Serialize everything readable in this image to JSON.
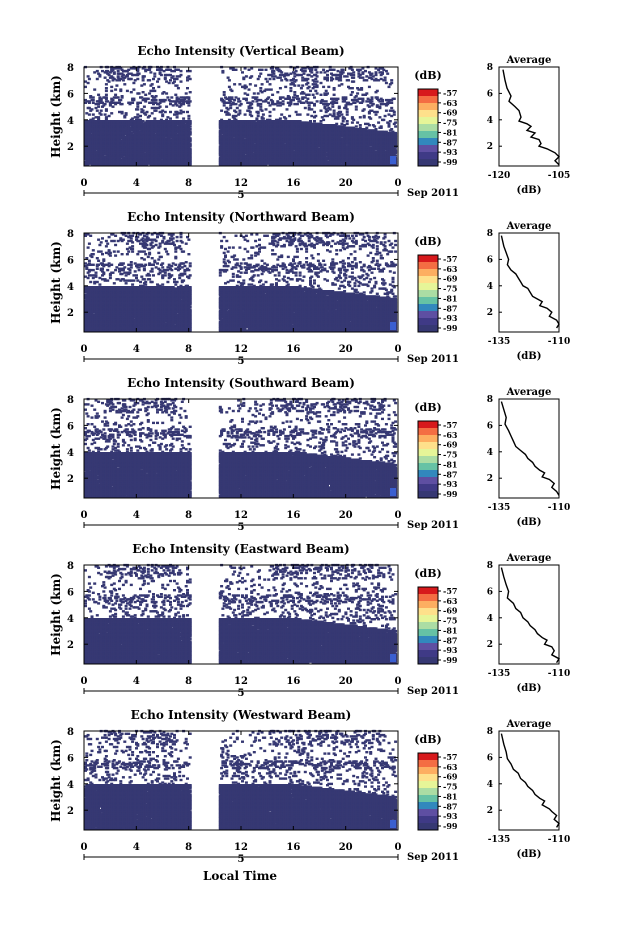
{
  "figure": {
    "xlabel": "Local Time",
    "date_label": "Sep 2011",
    "day_label": "5",
    "ylabel": "Height (km)",
    "colorbar_unit": "(dB)",
    "average_title": "Average",
    "average_xlabel": "(dB)"
  },
  "chart_data": [
    {
      "type": "heatmap",
      "title": "Echo Intensity (Vertical Beam)",
      "x_ticks": [
        "0",
        "4",
        "8",
        "12",
        "16",
        "20",
        "0"
      ],
      "xlim": [
        0,
        24
      ],
      "y_ticks": [
        "2",
        "4",
        "6",
        "8"
      ],
      "ylim": [
        0.5,
        8
      ],
      "colorbar_ticks": [
        "-57",
        "-63",
        "-69",
        "-75",
        "-81",
        "-87",
        "-93",
        "-99"
      ],
      "gap_hours": [
        8,
        10.2
      ],
      "dense_top_km": 3.85,
      "average": {
        "xlim": [
          -120,
          -105
        ],
        "x_ticks": [
          "-120",
          "-105"
        ],
        "y_ticks": [
          "2",
          "4",
          "6",
          "8"
        ],
        "points": [
          [
            -119,
            7.8
          ],
          [
            -118.5,
            7.0
          ],
          [
            -118,
            6.4
          ],
          [
            -117,
            5.8
          ],
          [
            -117.5,
            5.4
          ],
          [
            -116,
            5.0
          ],
          [
            -115,
            4.7
          ],
          [
            -114.5,
            4.2
          ],
          [
            -115,
            3.9
          ],
          [
            -113,
            3.7
          ],
          [
            -112,
            3.5
          ],
          [
            -113,
            3.2
          ],
          [
            -111,
            3.0
          ],
          [
            -112,
            2.7
          ],
          [
            -110,
            2.5
          ],
          [
            -109.5,
            2.2
          ],
          [
            -110,
            2.0
          ],
          [
            -108,
            1.8
          ],
          [
            -106,
            1.5
          ],
          [
            -105,
            1.2
          ],
          [
            -106,
            0.9
          ],
          [
            -105,
            0.6
          ]
        ]
      }
    },
    {
      "type": "heatmap",
      "title": "Echo Intensity (Northward Beam)",
      "x_ticks": [
        "0",
        "4",
        "8",
        "12",
        "16",
        "20",
        "0"
      ],
      "xlim": [
        0,
        24
      ],
      "y_ticks": [
        "2",
        "4",
        "6",
        "8"
      ],
      "ylim": [
        0.5,
        8
      ],
      "colorbar_ticks": [
        "-57",
        "-63",
        "-69",
        "-75",
        "-81",
        "-87",
        "-93",
        "-99"
      ],
      "gap_hours": [
        8,
        10.2
      ],
      "dense_top_km": 3.85,
      "average": {
        "xlim": [
          -135,
          -110
        ],
        "x_ticks": [
          "-135",
          "-110"
        ],
        "y_ticks": [
          "2",
          "4",
          "6",
          "8"
        ],
        "points": [
          [
            -134,
            7.8
          ],
          [
            -133,
            7.0
          ],
          [
            -132,
            6.5
          ],
          [
            -131,
            6.0
          ],
          [
            -131.5,
            5.6
          ],
          [
            -130,
            5.2
          ],
          [
            -128,
            4.9
          ],
          [
            -127,
            4.6
          ],
          [
            -126,
            4.3
          ],
          [
            -125,
            4.0
          ],
          [
            -123,
            3.8
          ],
          [
            -122,
            3.5
          ],
          [
            -121,
            3.2
          ],
          [
            -119,
            3.0
          ],
          [
            -117,
            2.8
          ],
          [
            -118,
            2.5
          ],
          [
            -115,
            2.3
          ],
          [
            -113,
            2.0
          ],
          [
            -114,
            1.7
          ],
          [
            -111,
            1.4
          ],
          [
            -110,
            1.1
          ],
          [
            -111,
            0.8
          ]
        ]
      }
    },
    {
      "type": "heatmap",
      "title": "Echo Intensity (Southward Beam)",
      "x_ticks": [
        "0",
        "4",
        "8",
        "12",
        "16",
        "20",
        "0"
      ],
      "xlim": [
        0,
        24
      ],
      "y_ticks": [
        "2",
        "4",
        "6",
        "8"
      ],
      "ylim": [
        0.5,
        8
      ],
      "colorbar_ticks": [
        "-57",
        "-63",
        "-69",
        "-75",
        "-81",
        "-87",
        "-93",
        "-99"
      ],
      "gap_hours": [
        8,
        10.2
      ],
      "dense_top_km": 3.9,
      "average": {
        "xlim": [
          -135,
          -110
        ],
        "x_ticks": [
          "-135",
          "-110"
        ],
        "y_ticks": [
          "2",
          "4",
          "6",
          "8"
        ],
        "points": [
          [
            -134,
            7.8
          ],
          [
            -133,
            7.2
          ],
          [
            -132,
            6.6
          ],
          [
            -132.5,
            6.1
          ],
          [
            -131,
            5.6
          ],
          [
            -130,
            5.2
          ],
          [
            -129,
            4.8
          ],
          [
            -128,
            4.4
          ],
          [
            -126,
            4.1
          ],
          [
            -124,
            3.8
          ],
          [
            -123,
            3.5
          ],
          [
            -121,
            3.2
          ],
          [
            -120,
            2.9
          ],
          [
            -118,
            2.6
          ],
          [
            -116,
            2.4
          ],
          [
            -117,
            2.1
          ],
          [
            -114,
            1.9
          ],
          [
            -112,
            1.6
          ],
          [
            -113,
            1.3
          ],
          [
            -111,
            1.0
          ],
          [
            -110,
            0.7
          ]
        ]
      }
    },
    {
      "type": "heatmap",
      "title": "Echo Intensity (Eastward Beam)",
      "x_ticks": [
        "0",
        "4",
        "8",
        "12",
        "16",
        "20",
        "0"
      ],
      "xlim": [
        0,
        24
      ],
      "y_ticks": [
        "2",
        "4",
        "6",
        "8"
      ],
      "ylim": [
        0.5,
        8
      ],
      "colorbar_ticks": [
        "-57",
        "-63",
        "-69",
        "-75",
        "-81",
        "-87",
        "-93",
        "-99"
      ],
      "gap_hours": [
        8,
        10.2
      ],
      "dense_top_km": 3.85,
      "average": {
        "xlim": [
          -135,
          -110
        ],
        "x_ticks": [
          "-135",
          "-110"
        ],
        "y_ticks": [
          "2",
          "4",
          "6",
          "8"
        ],
        "points": [
          [
            -134,
            7.8
          ],
          [
            -133,
            7.1
          ],
          [
            -132,
            6.5
          ],
          [
            -131,
            6.0
          ],
          [
            -131.5,
            5.5
          ],
          [
            -129,
            5.1
          ],
          [
            -128,
            4.7
          ],
          [
            -126,
            4.4
          ],
          [
            -125,
            4.0
          ],
          [
            -123,
            3.7
          ],
          [
            -122,
            3.4
          ],
          [
            -120,
            3.1
          ],
          [
            -119,
            2.8
          ],
          [
            -117,
            2.5
          ],
          [
            -115,
            2.3
          ],
          [
            -116,
            2.0
          ],
          [
            -113,
            1.8
          ],
          [
            -112,
            1.5
          ],
          [
            -113,
            1.2
          ],
          [
            -110,
            0.9
          ],
          [
            -111,
            0.6
          ]
        ]
      }
    },
    {
      "type": "heatmap",
      "title": "Echo Intensity (Westward Beam)",
      "x_ticks": [
        "0",
        "4",
        "8",
        "12",
        "16",
        "20",
        "0"
      ],
      "xlim": [
        0,
        24
      ],
      "y_ticks": [
        "2",
        "4",
        "6",
        "8"
      ],
      "ylim": [
        0.5,
        8
      ],
      "colorbar_ticks": [
        "-57",
        "-63",
        "-69",
        "-75",
        "-81",
        "-87",
        "-93",
        "-99"
      ],
      "gap_hours": [
        8,
        10.2
      ],
      "dense_top_km": 3.85,
      "average": {
        "xlim": [
          -135,
          -110
        ],
        "x_ticks": [
          "-135",
          "-110"
        ],
        "y_ticks": [
          "2",
          "4",
          "6",
          "8"
        ],
        "points": [
          [
            -134,
            7.8
          ],
          [
            -133,
            7.0
          ],
          [
            -132,
            6.4
          ],
          [
            -131.5,
            5.9
          ],
          [
            -130,
            5.5
          ],
          [
            -129,
            5.1
          ],
          [
            -127,
            4.8
          ],
          [
            -126,
            4.4
          ],
          [
            -124,
            4.1
          ],
          [
            -123,
            3.8
          ],
          [
            -121,
            3.5
          ],
          [
            -120,
            3.2
          ],
          [
            -118,
            2.9
          ],
          [
            -116,
            2.7
          ],
          [
            -117,
            2.4
          ],
          [
            -114,
            2.1
          ],
          [
            -113,
            1.9
          ],
          [
            -111,
            1.6
          ],
          [
            -112,
            1.3
          ],
          [
            -110,
            1.0
          ],
          [
            -111,
            0.7
          ]
        ]
      }
    }
  ]
}
